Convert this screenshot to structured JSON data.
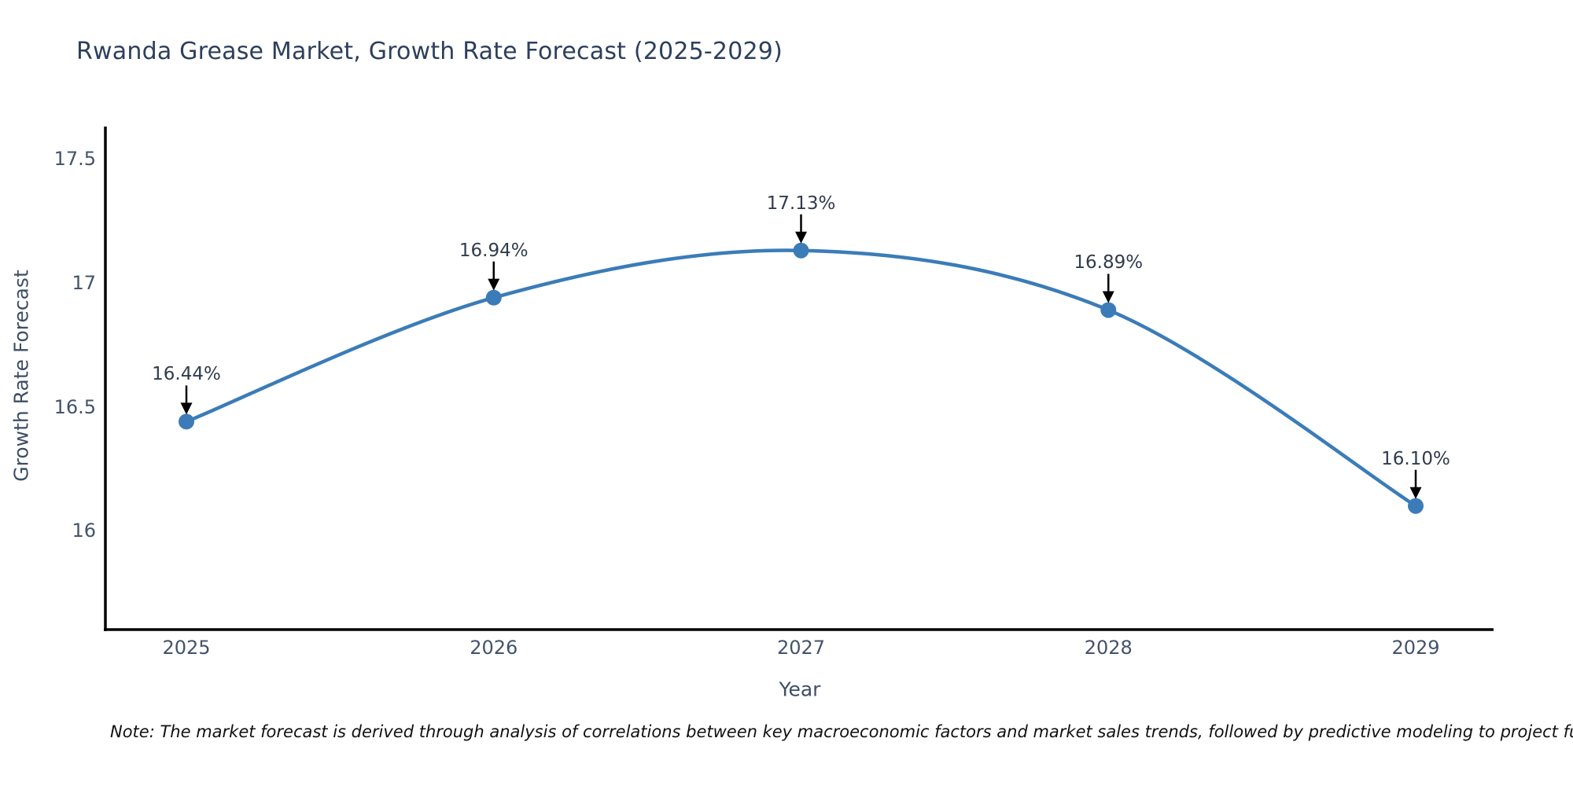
{
  "title": "Rwanda Grease Market, Growth Rate Forecast (2025-2029)",
  "note": "Note: The market forecast is derived through analysis of correlations between key macroeconomic factors and market sales trends, followed by predictive modeling to project future sal",
  "colors": {
    "line": "#3b7cb8",
    "marker": "#3b7cb8",
    "axis": "#000000",
    "arrow": "#000000",
    "title_text": "#2d3f5c",
    "tick_text": "#44536b",
    "annotation_text": "#313c4c"
  },
  "chart_data": {
    "type": "line",
    "title": "Rwanda Grease Market, Growth Rate Forecast (2025-2029)",
    "xlabel": "Year",
    "ylabel": "Growth Rate Forecast",
    "categories": [
      "2025",
      "2026",
      "2027",
      "2028",
      "2029"
    ],
    "series": [
      {
        "name": "Growth Rate Forecast",
        "values": [
          16.44,
          16.94,
          17.13,
          16.89,
          16.1
        ]
      }
    ],
    "data_labels": [
      "16.44%",
      "16.94%",
      "17.13%",
      "16.89%",
      "16.10%"
    ],
    "ytick_values": [
      17.5,
      17,
      16.5,
      16
    ],
    "ytick_labels": [
      "17.5",
      "17",
      "16.5",
      "16"
    ],
    "ylim": [
      15.56,
      17.63
    ],
    "grid": false,
    "legend": false,
    "line_shape": "spline",
    "annotation_style": "black-down-arrow"
  }
}
